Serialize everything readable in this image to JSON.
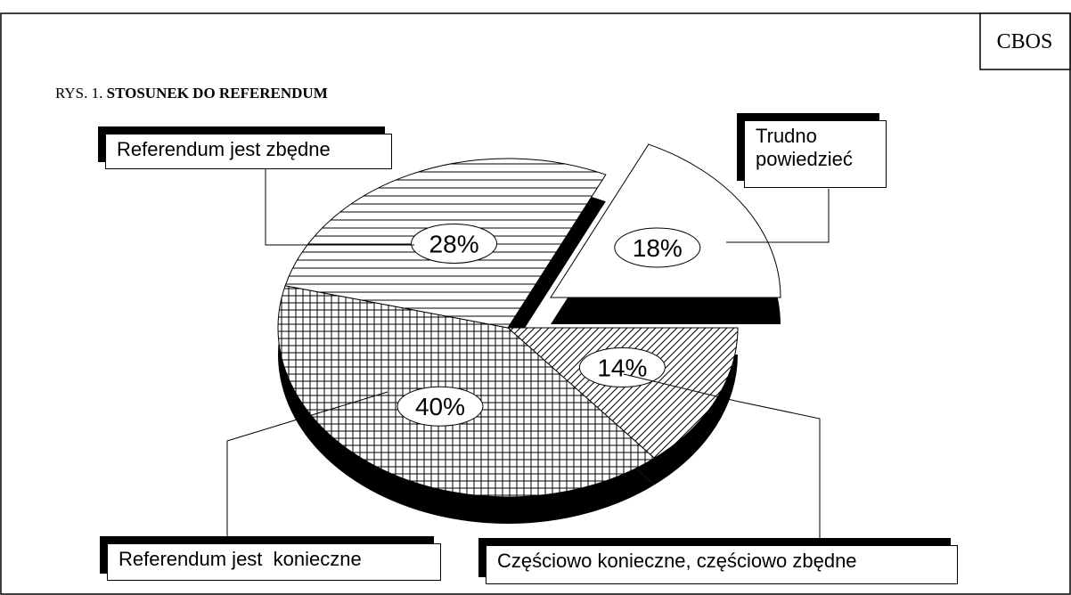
{
  "source": "CBOS",
  "chart_data": {
    "type": "pie",
    "figure_label": "RYS. 1.",
    "title": "STOSUNEK DO REFERENDUM",
    "categories": [
      "Częściowo konieczne, częściowo zbędne",
      "Referendum jest  konieczne",
      "Referendum jest zbędne",
      "Trudno powiedzieć"
    ],
    "values": [
      14,
      40,
      28,
      18
    ],
    "value_labels": [
      "14%",
      "40%",
      "28%",
      "18%"
    ],
    "patterns": [
      "diagonal",
      "grid",
      "horizontal",
      "none"
    ]
  }
}
